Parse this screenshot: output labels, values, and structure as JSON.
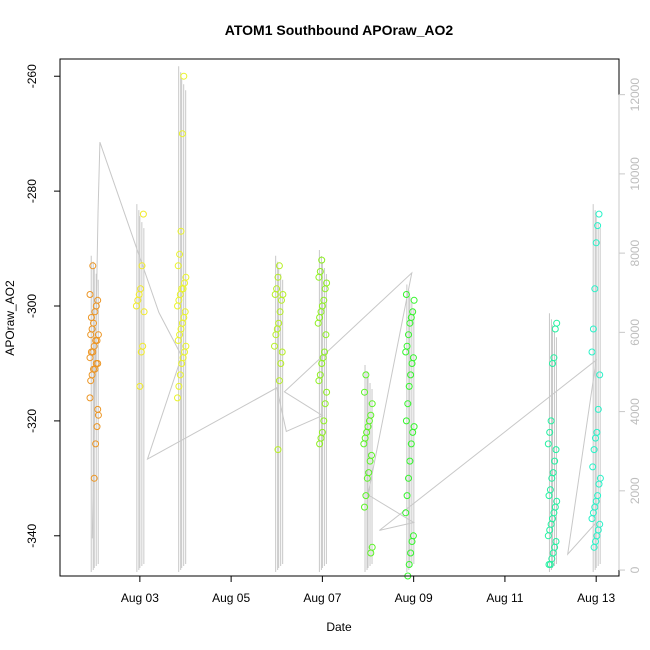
{
  "chart_data": {
    "type": "scatter",
    "title": "ATOM1 Southbound APOraw_AO2",
    "xlabel": "Date",
    "ylabel": "APOraw_AO2",
    "x_range": [
      "2023-08-01T06:00",
      "2023-08-13T12:00"
    ],
    "y_range": [
      -347,
      -257
    ],
    "y2_range": [
      -150,
      12900
    ],
    "x_ticks": [
      "Aug 03",
      "Aug 05",
      "Aug 07",
      "Aug 09",
      "Aug 11",
      "Aug 13"
    ],
    "x_tick_values": [
      "2023-08-03",
      "2023-08-05",
      "2023-08-07",
      "2023-08-09",
      "2023-08-11",
      "2023-08-13"
    ],
    "y_ticks": [
      -260,
      -280,
      -300,
      -320,
      -340
    ],
    "y2_ticks": [
      0,
      2000,
      4000,
      6000,
      8000,
      10000,
      12000
    ],
    "y2_color": "#c8c8c8",
    "grid": false,
    "legend": "none",
    "point_style": "open-circle",
    "line_color": "#c8c8c8",
    "clusters": [
      {
        "center": "2023-08-02T00:00",
        "color": "#ec9523",
        "y": [
          -298,
          -299,
          -300,
          -301,
          -303,
          -304,
          -305,
          -305,
          -306,
          -306,
          -307,
          -308,
          -308,
          -309,
          -310,
          -310,
          -311,
          -311,
          -312,
          -313,
          -319,
          -321,
          -324,
          -330,
          -293,
          -302,
          -316,
          -318
        ]
      },
      {
        "center": "2023-08-03T00:00",
        "color": "#f1ea2a",
        "y": [
          -284,
          -293,
          -297,
          -298,
          -299,
          -300,
          -301,
          -307,
          -308,
          -314
        ]
      },
      {
        "center": "2023-08-03T22:00",
        "color": "#eaf42a",
        "y": [
          -260,
          -270,
          -287,
          -291,
          -293,
          -295,
          -296,
          -297,
          -297,
          -298,
          -299,
          -300,
          -301,
          -302,
          -303,
          -304,
          -305,
          -306,
          -307,
          -308,
          -309,
          -310,
          -312,
          -314,
          -316
        ]
      },
      {
        "center": "2023-08-06T01:00",
        "color": "#b6ef24",
        "y": [
          -293,
          -295,
          -297,
          -298,
          -298,
          -299,
          -301,
          -303,
          -304,
          -305,
          -307,
          -308,
          -310,
          -313,
          -325
        ]
      },
      {
        "center": "2023-08-07T00:00",
        "color": "#8ef021",
        "y": [
          -292,
          -294,
          -295,
          -296,
          -297,
          -299,
          -300,
          -301,
          -302,
          -303,
          -305,
          -308,
          -309,
          -310,
          -312,
          -313,
          -315,
          -317,
          -320,
          -322,
          -323,
          -324
        ]
      },
      {
        "center": "2023-08-08T00:00",
        "color": "#5cf326",
        "y": [
          -312,
          -315,
          -317,
          -319,
          -320,
          -321,
          -322,
          -323,
          -324,
          -326,
          -327,
          -329,
          -330,
          -333,
          -335,
          -342,
          -343
        ]
      },
      {
        "center": "2023-08-08T22:00",
        "color": "#34f52c",
        "y": [
          -298,
          -299,
          -301,
          -302,
          -303,
          -305,
          -307,
          -308,
          -309,
          -310,
          -312,
          -314,
          -317,
          -320,
          -321,
          -322,
          -324,
          -327,
          -330,
          -333,
          -336,
          -340,
          -341,
          -343,
          -345,
          -347
        ]
      },
      {
        "center": "2023-08-12T01:00",
        "color": "#23f0a0",
        "y": [
          -303,
          -304,
          -309,
          -310,
          -320,
          -322,
          -324,
          -325,
          -327,
          -329,
          -330,
          -332,
          -333,
          -334,
          -335,
          -336,
          -337,
          -338,
          -339,
          -340,
          -341,
          -342,
          -343,
          -344,
          -345,
          -345
        ]
      },
      {
        "center": "2023-08-13T00:00",
        "color": "#28f2c8",
        "y": [
          -284,
          -286,
          -289,
          -297,
          -304,
          -308,
          -312,
          -318,
          -322,
          -323,
          -325,
          -328,
          -330,
          -331,
          -333,
          -334,
          -335,
          -336,
          -337,
          -338,
          -339,
          -340,
          -341,
          -342
        ]
      }
    ],
    "secondary_series": {
      "name": "",
      "color": "#c8c8c8",
      "points": [
        [
          "2023-08-01T23:00",
          800
        ],
        [
          "2023-08-02T02:00",
          9000
        ],
        [
          "2023-08-02T03:00",
          10800
        ],
        [
          "2023-08-03T10:00",
          6500
        ],
        [
          "2023-08-03T22:00",
          5400
        ],
        [
          "2023-08-03T04:00",
          2800
        ],
        [
          "2023-08-06T00:00",
          4600
        ],
        [
          "2023-08-06T05:00",
          3500
        ],
        [
          "2023-08-07T00:00",
          3900
        ],
        [
          "2023-08-06T04:00",
          4500
        ],
        [
          "2023-08-08T23:00",
          7500
        ],
        [
          "2023-08-08T00:00",
          1900
        ],
        [
          "2023-08-09T00:00",
          1200
        ],
        [
          "2023-08-08T06:00",
          1000
        ],
        [
          "2023-08-13T00:00",
          5300
        ],
        [
          "2023-08-12T09:00",
          400
        ],
        [
          "2023-08-13T00:00",
          1200
        ]
      ]
    }
  }
}
